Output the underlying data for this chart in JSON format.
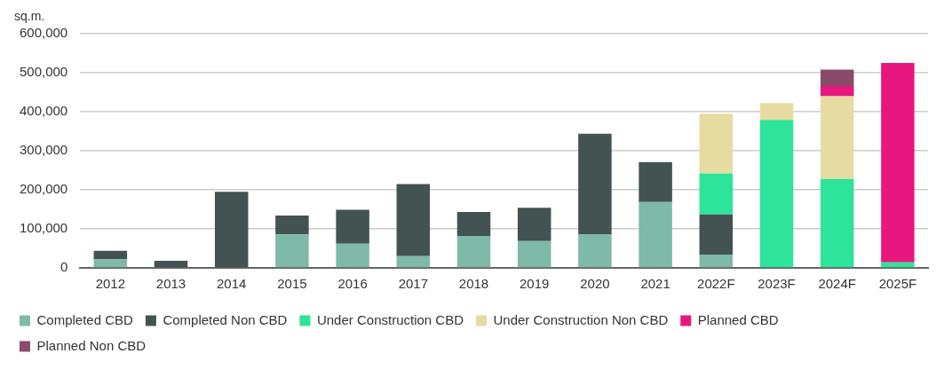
{
  "chart_data": {
    "type": "bar",
    "stacked": true,
    "ylabel": "sq.m.",
    "categories": [
      "2012",
      "2013",
      "2014",
      "2015",
      "2016",
      "2017",
      "2018",
      "2019",
      "2020",
      "2021",
      "2022F",
      "2023F",
      "2024F",
      "2025F"
    ],
    "series": [
      {
        "name": "Completed CBD",
        "color": "#7fb9a8",
        "values": [
          22000,
          0,
          0,
          86000,
          62000,
          30000,
          82000,
          69000,
          85000,
          169000,
          34000,
          0,
          0,
          0
        ]
      },
      {
        "name": "Completed Non CBD",
        "color": "#435352",
        "values": [
          22000,
          18000,
          195000,
          48000,
          87000,
          185000,
          61000,
          85000,
          259000,
          102000,
          103000,
          0,
          0,
          0
        ]
      },
      {
        "name": "Under Construction CBD",
        "color": "#2ee39a",
        "values": [
          0,
          0,
          0,
          0,
          0,
          0,
          0,
          0,
          0,
          0,
          105000,
          379000,
          228000,
          14000
        ]
      },
      {
        "name": "Under Construction Non CBD",
        "color": "#e6dba0",
        "values": [
          0,
          0,
          0,
          0,
          0,
          0,
          0,
          0,
          0,
          0,
          153000,
          43000,
          212000,
          0
        ]
      },
      {
        "name": "Planned CBD",
        "color": "#e8177f",
        "values": [
          0,
          0,
          0,
          0,
          0,
          0,
          0,
          0,
          0,
          0,
          0,
          0,
          26000,
          511000
        ]
      },
      {
        "name": "Planned Non CBD",
        "color": "#8a4a6a",
        "values": [
          0,
          0,
          0,
          0,
          0,
          0,
          0,
          0,
          0,
          0,
          0,
          0,
          42000,
          0
        ]
      }
    ],
    "ylim": [
      0,
      600000
    ],
    "yticks": [
      0,
      {
        "value": 100000,
        "label": "100,000"
      },
      {
        "value": 200000,
        "label": "200,000"
      },
      {
        "value": 300000,
        "label": "300,000"
      },
      {
        "value": 400000,
        "label": "400,000"
      },
      {
        "value": 500000,
        "label": "500,000"
      },
      {
        "value": 600000,
        "label": "600,000"
      }
    ],
    "grid": "y",
    "legend": "bottom"
  }
}
